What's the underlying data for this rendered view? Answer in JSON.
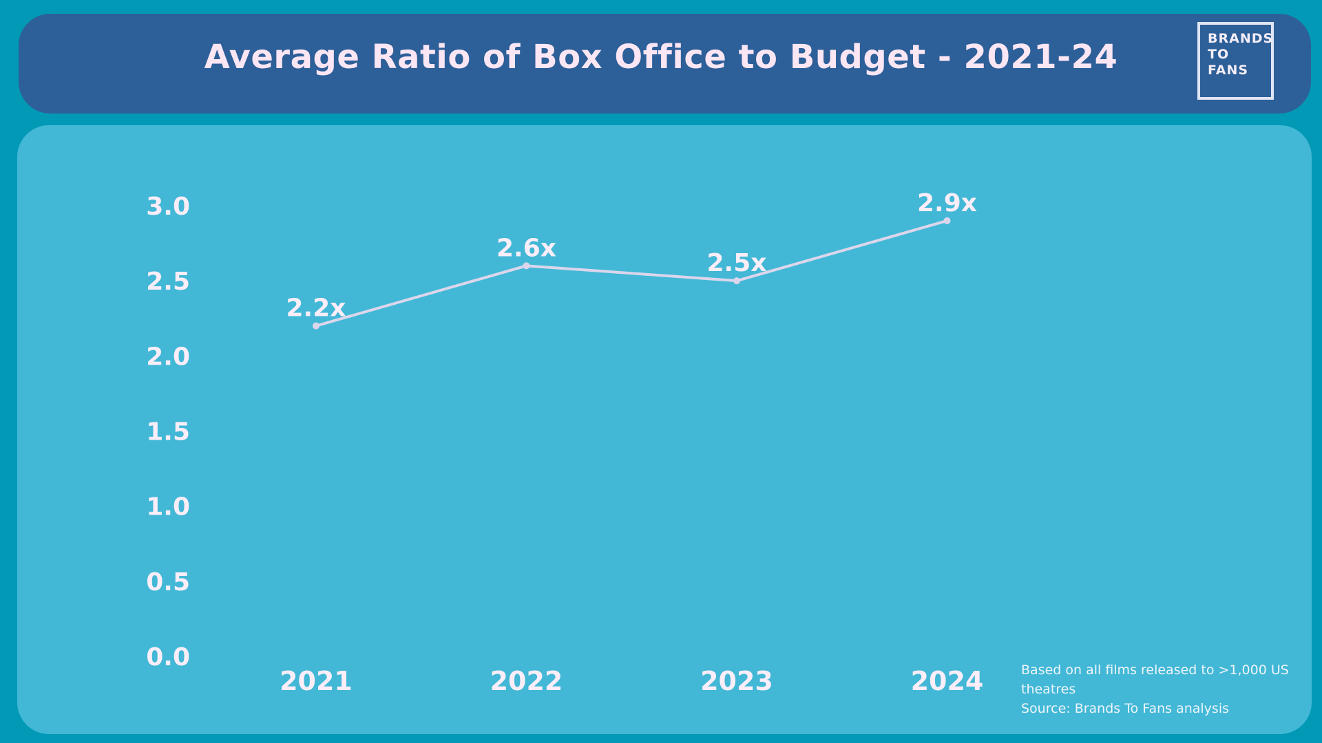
{
  "header": {
    "title": "Average Ratio of Box Office to Budget - 2021-24"
  },
  "logo": {
    "lines": [
      "BRANDS",
      "TO",
      "FANS"
    ]
  },
  "chart_data": {
    "type": "line",
    "title": "Average Ratio of Box Office to Budget - 2021-24",
    "xlabel": "",
    "ylabel": "",
    "categories": [
      "2021",
      "2022",
      "2023",
      "2024"
    ],
    "series": [
      {
        "values": [
          2.2,
          2.6,
          2.5,
          2.9
        ],
        "labels": [
          "2.2x",
          "2.6x",
          "2.5x",
          "2.9x"
        ],
        "color": "#dcd6ec"
      }
    ],
    "ylim": [
      0,
      3.0
    ],
    "yticks": [
      "0.0",
      "0.5",
      "1.0",
      "1.5",
      "2.0",
      "2.5",
      "3.0"
    ],
    "grid": false,
    "legend": "none"
  },
  "notes": {
    "line1": "Based on all films released to >1,000 US",
    "line2": "theatres",
    "line3": "Source: Brands To Fans analysis"
  },
  "colors": {
    "page_background": "#0299b6",
    "header_background": "#2d5f98",
    "panel_background": "#42b8d6",
    "text": "#fbe6f4"
  }
}
